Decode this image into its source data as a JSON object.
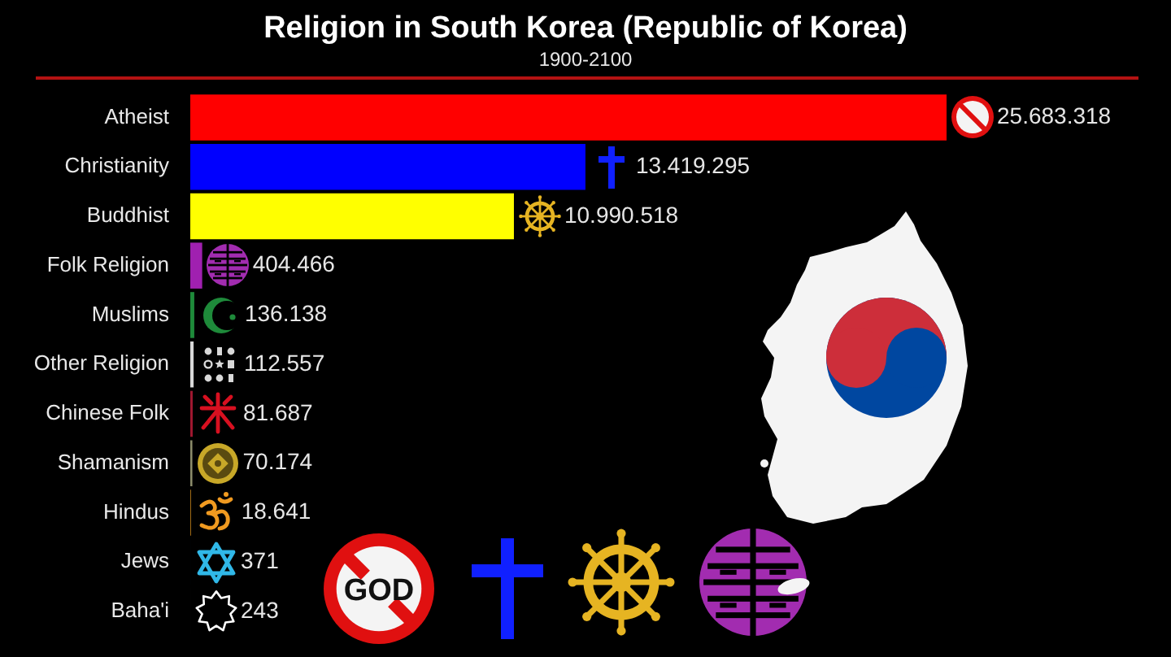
{
  "chart_data": {
    "type": "bar",
    "orientation": "horizontal",
    "title": "Religion in South Korea (Republic of Korea)",
    "subtitle": "1900-2100",
    "categories": [
      "Atheist",
      "Christianity",
      "Buddhist",
      "Folk Religion",
      "Muslims",
      "Other Religion",
      "Chinese Folk",
      "Shamanism",
      "Hindus",
      "Jews",
      "Baha'i"
    ],
    "values": [
      25683318,
      13419295,
      10990518,
      404466,
      136138,
      112557,
      81687,
      70174,
      18641,
      371,
      243
    ],
    "colors": [
      "#ff0000",
      "#0000ff",
      "#ffff00",
      "#a020b0",
      "#1e8a3a",
      "#d8d8d8",
      "#a01830",
      "#8c8c6a",
      "#f0a020",
      "#2ab0e0",
      "#ffffff"
    ],
    "value_labels": [
      "25.683.318",
      "13.419.295",
      "10.990.518",
      "404.466",
      "136.138",
      "112.557",
      "81.687",
      "70.174",
      "18.641",
      "371",
      "243"
    ],
    "tick_labels": "y",
    "annotations": [
      "GOD"
    ]
  }
}
